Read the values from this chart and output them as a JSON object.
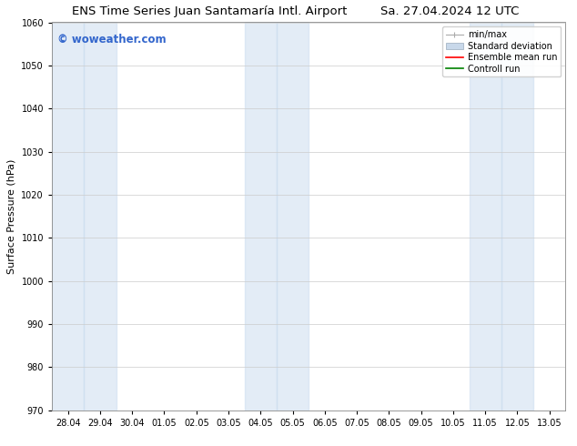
{
  "title_left": "ENS Time Series Juan Santamaría Intl. Airport",
  "title_right": "Sa. 27.04.2024 12 UTC",
  "ylabel": "Surface Pressure (hPa)",
  "ylim": [
    970,
    1060
  ],
  "yticks": [
    970,
    980,
    990,
    1000,
    1010,
    1020,
    1030,
    1040,
    1050,
    1060
  ],
  "xtick_labels": [
    "28.04",
    "29.04",
    "30.04",
    "01.05",
    "02.05",
    "03.05",
    "04.05",
    "05.05",
    "06.05",
    "07.05",
    "08.05",
    "09.05",
    "10.05",
    "11.05",
    "12.05",
    "13.05"
  ],
  "shaded_columns": [
    0,
    1,
    6,
    7,
    13,
    14
  ],
  "shaded_color": "#ccddf0",
  "shaded_alpha": 0.55,
  "watermark": "© woweather.com",
  "watermark_color": "#3366cc",
  "legend_labels": [
    "min/max",
    "Standard deviation",
    "Ensemble mean run",
    "Controll run"
  ],
  "legend_colors": [
    "#999999",
    "#c8d8ea",
    "red",
    "green"
  ],
  "background_color": "#ffffff",
  "grid_color": "#cccccc",
  "title_fontsize": 9.5,
  "tick_fontsize": 7,
  "ylabel_fontsize": 8,
  "legend_fontsize": 7
}
